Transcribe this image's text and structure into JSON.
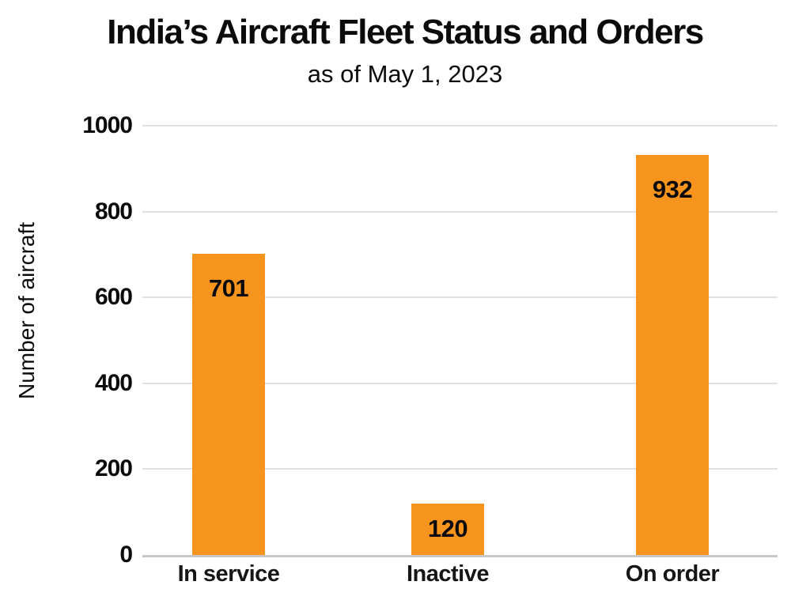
{
  "chart": {
    "title": "India’s Aircraft Fleet Status and Orders",
    "subtitle": "as of May 1, 2023",
    "ylabel": "Number of aircraft"
  },
  "chart_data": {
    "type": "bar",
    "categories": [
      "In service",
      "Inactive",
      "On order"
    ],
    "values": [
      701,
      120,
      932
    ],
    "title": "India’s Aircraft Fleet Status and Orders",
    "subtitle": "as of May 1, 2023",
    "xlabel": "",
    "ylabel": "Number of aircraft",
    "ylim": [
      0,
      1000
    ],
    "yticks": [
      0,
      200,
      400,
      600,
      800,
      1000
    ],
    "grid": true,
    "legend": false,
    "bar_color": "#f7941e",
    "value_label_color": "#0b0b0b"
  },
  "colors": {
    "background": "#ffffff",
    "bar": "#f7941e",
    "gridline": "#e1e1e1",
    "axis_line": "#c7c7c7",
    "text": "#0b0b0b"
  }
}
